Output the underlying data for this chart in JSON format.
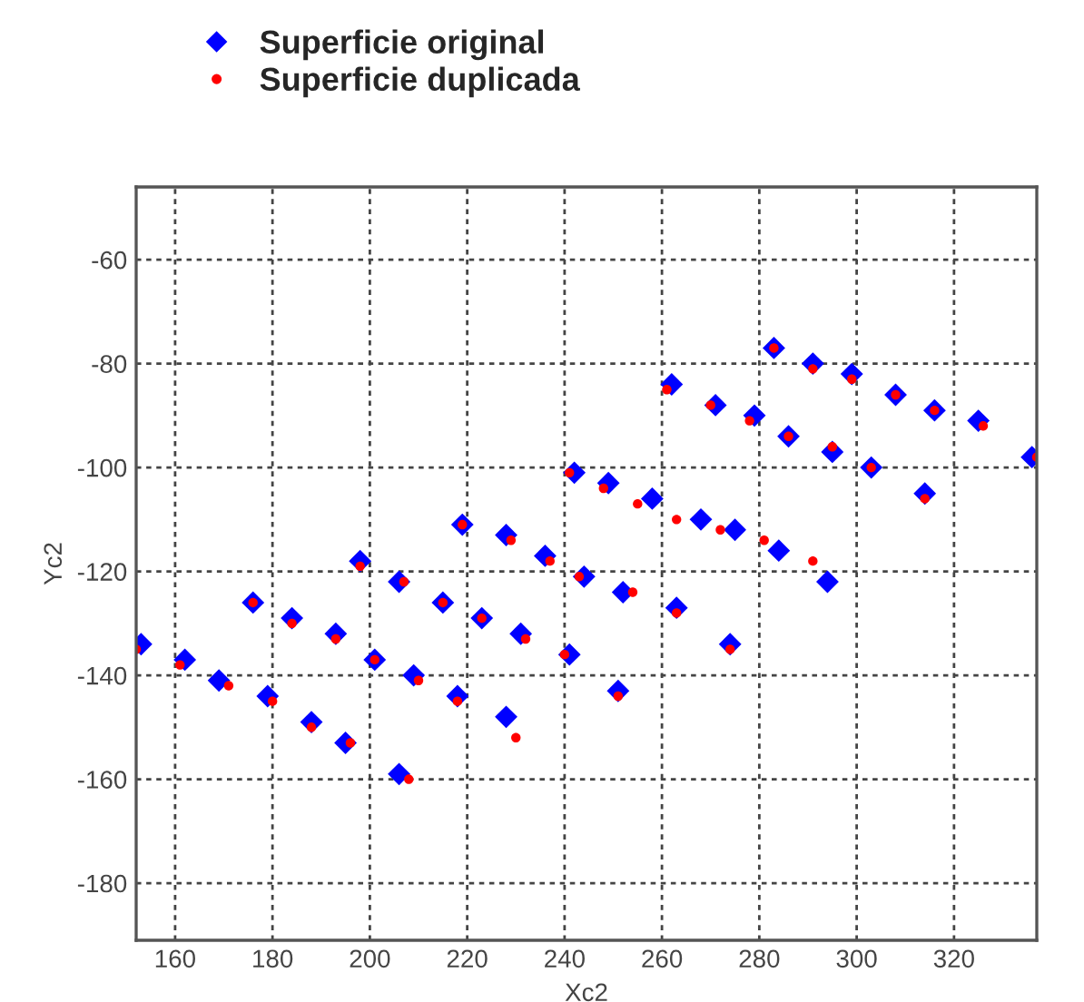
{
  "chart_data": {
    "type": "scatter",
    "xlabel": "Xc2",
    "ylabel": "Yc2",
    "xlim": [
      152,
      337
    ],
    "ylim": [
      -191,
      -46
    ],
    "xticks": [
      160,
      180,
      200,
      220,
      240,
      260,
      280,
      300,
      320
    ],
    "yticks": [
      -180,
      -160,
      -140,
      -120,
      -100,
      -80,
      -60
    ],
    "grid": true,
    "legend": "top left",
    "series": [
      {
        "name": "Superficie original",
        "color": "#0000ff",
        "marker": "diamond",
        "x": [
          153,
          162,
          169,
          176,
          179,
          184,
          188,
          193,
          195,
          198,
          201,
          206,
          206,
          209,
          215,
          218,
          219,
          223,
          228,
          228,
          231,
          236,
          241,
          242,
          244,
          249,
          251,
          252,
          258,
          262,
          263,
          268,
          271,
          274,
          275,
          279,
          283,
          284,
          286,
          291,
          294,
          295,
          299,
          303,
          308,
          314,
          316,
          325,
          336
        ],
        "values": [
          -134,
          -137,
          -141,
          -126,
          -144,
          -129,
          -149,
          -132,
          -153,
          -118,
          -137,
          -122,
          -159,
          -140,
          -126,
          -144,
          -111,
          -129,
          -113,
          -148,
          -132,
          -117,
          -136,
          -101,
          -121,
          -103,
          -143,
          -124,
          -106,
          -84,
          -127,
          -110,
          -88,
          -134,
          -112,
          -90,
          -77,
          -116,
          -94,
          -80,
          -122,
          -97,
          -82,
          -100,
          -86,
          -105,
          -89,
          -91,
          -98
        ]
      },
      {
        "name": "Superficie duplicada",
        "color": "#ff0000",
        "marker": "circle",
        "x": [
          152,
          161,
          171,
          176,
          180,
          184,
          188,
          193,
          196,
          198,
          201,
          207,
          208,
          210,
          215,
          218,
          219,
          223,
          229,
          230,
          232,
          237,
          240,
          241,
          243,
          248,
          251,
          254,
          255,
          261,
          263,
          263,
          270,
          274,
          272,
          278,
          283,
          281,
          286,
          291,
          291,
          295,
          299,
          303,
          308,
          314,
          316,
          326,
          337
        ],
        "values": [
          -135,
          -138,
          -142,
          -126,
          -145,
          -130,
          -150,
          -133,
          -153,
          -119,
          -137,
          -122,
          -160,
          -141,
          -126,
          -145,
          -111,
          -129,
          -114,
          -152,
          -133,
          -118,
          -136,
          -101,
          -121,
          -104,
          -144,
          -124,
          -107,
          -85,
          -128,
          -110,
          -88,
          -135,
          -112,
          -91,
          -77,
          -114,
          -94,
          -81,
          -118,
          -96,
          -83,
          -100,
          -86,
          -106,
          -89,
          -92,
          -98
        ]
      }
    ]
  }
}
